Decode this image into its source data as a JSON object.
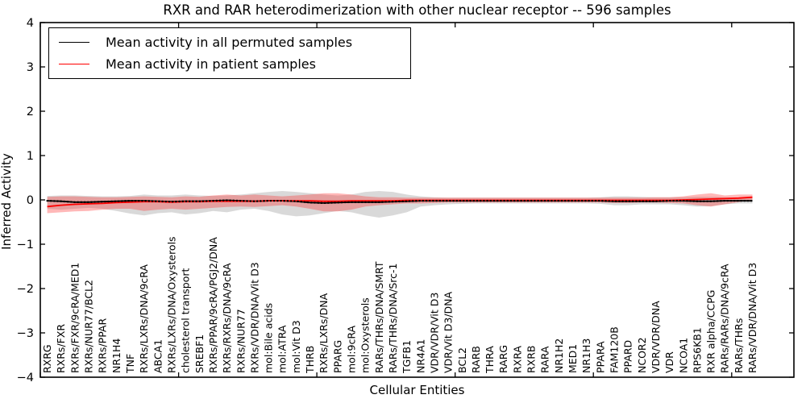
{
  "chart_data": {
    "type": "line",
    "title": "RXR and RAR heterodimerization with other nuclear receptor -- 596 samples",
    "xlabel": "Cellular Entities",
    "ylabel": "Inferred Activity",
    "ylim": [
      -4,
      4
    ],
    "yticks": [
      -4,
      -3,
      -2,
      -1,
      0,
      1,
      2,
      3,
      4
    ],
    "ytick_labels": [
      "−4",
      "−3",
      "−2",
      "−1",
      "0",
      "1",
      "2",
      "3",
      "4"
    ],
    "xlim": [
      0,
      54.5
    ],
    "xticks": [
      0,
      10,
      20,
      30,
      40,
      50
    ],
    "grid": false,
    "legend": {
      "position": "upper-left",
      "entries": [
        {
          "label": "Mean activity in all permuted samples",
          "color": "#000000"
        },
        {
          "label": "Mean activity in patient samples",
          "color": "#ff0000"
        }
      ]
    },
    "colors": {
      "permuted_line": "#000000",
      "patient_line": "#ff0000",
      "permuted_band": "rgba(130,130,130,0.30)",
      "patient_band": "rgba(255,40,40,0.33)"
    },
    "categories": [
      "RXRG",
      "RXRs/FXR",
      "RXRs/FXR/9cRA/MED1",
      "RXRs/NUR77/BCL2",
      "RXRs/PPAR",
      "NR1H4",
      "TNF",
      "RXRs/LXRs/DNA/9cRA",
      "ABCA1",
      "RXRs/LXRs/DNA/Oxysterols",
      "cholesterol transport",
      "SREBF1",
      "RXRs/PPAR/9cRA/PGJ2/DNA",
      "RXRs/RXRs/DNA/9cRA",
      "RXRs/NUR77",
      "RXRs/VDR/DNA/Vit D3",
      "mol:Bile acids",
      "mol:ATRA",
      "mol:Vit D3",
      "THRB",
      "RXRs/LXRs/DNA",
      "PPARG",
      "mol:9cRA",
      "mol:Oxysterols",
      "RARs/THRs/DNA/SMRT",
      "RARs/THRs/DNA/Src-1",
      "TGFB1",
      "NR4A1",
      "VDR/VDR/Vit D3",
      "VDR/Vit D3/DNA",
      "BCL2",
      "RARB",
      "THRA",
      "RARG",
      "RXRA",
      "RXRB",
      "RARA",
      "NR1H2",
      "MED1",
      "NR1H3",
      "PPARA",
      "FAM120B",
      "PPARD",
      "NCOR2",
      "VDR/VDR/DNA",
      "VDR",
      "NCOA1",
      "RPS6KB1",
      "RXR alpha/CCPG",
      "RARs/RARs/DNA/9cRA",
      "RARs/THRs",
      "RARs/VDR/DNA/Vit D3"
    ],
    "series": [
      {
        "name": "Mean activity in all permuted samples",
        "kind": "line",
        "values": [
          -0.02,
          -0.03,
          -0.05,
          -0.05,
          -0.04,
          -0.03,
          -0.02,
          -0.02,
          -0.03,
          -0.04,
          -0.03,
          -0.03,
          -0.02,
          -0.01,
          -0.02,
          -0.03,
          -0.02,
          -0.02,
          -0.03,
          -0.06,
          -0.07,
          -0.06,
          -0.05,
          -0.05,
          -0.05,
          -0.04,
          -0.03,
          -0.02,
          -0.02,
          -0.02,
          -0.02,
          -0.02,
          -0.02,
          -0.02,
          -0.02,
          -0.02,
          -0.02,
          -0.02,
          -0.02,
          -0.02,
          -0.02,
          -0.03,
          -0.03,
          -0.03,
          -0.03,
          -0.02,
          -0.02,
          -0.03,
          -0.03,
          -0.02,
          -0.02,
          -0.02
        ]
      },
      {
        "name": "Mean activity in patient samples",
        "kind": "line",
        "values": [
          -0.15,
          -0.12,
          -0.1,
          -0.09,
          -0.08,
          -0.06,
          -0.05,
          -0.04,
          -0.04,
          -0.05,
          -0.04,
          -0.04,
          -0.03,
          -0.03,
          -0.03,
          -0.03,
          -0.02,
          -0.02,
          -0.02,
          -0.02,
          -0.03,
          -0.03,
          -0.02,
          -0.02,
          -0.02,
          -0.02,
          -0.01,
          -0.01,
          -0.01,
          -0.01,
          -0.01,
          -0.01,
          -0.01,
          -0.01,
          -0.01,
          -0.01,
          -0.01,
          -0.01,
          -0.01,
          -0.01,
          -0.01,
          -0.01,
          -0.01,
          -0.01,
          -0.01,
          -0.01,
          0.0,
          0.01,
          0.02,
          0.03,
          0.04,
          0.06
        ]
      },
      {
        "name": "Permuted samples spread",
        "kind": "band",
        "upper": [
          0.09,
          0.1,
          0.1,
          0.09,
          0.08,
          0.08,
          0.09,
          0.12,
          0.1,
          0.1,
          0.12,
          0.1,
          0.09,
          0.1,
          0.12,
          0.15,
          0.18,
          0.2,
          0.18,
          0.15,
          0.12,
          0.1,
          0.12,
          0.18,
          0.2,
          0.18,
          0.12,
          0.08,
          0.06,
          0.05,
          0.05,
          0.05,
          0.05,
          0.05,
          0.05,
          0.05,
          0.05,
          0.05,
          0.05,
          0.05,
          0.06,
          0.08,
          0.08,
          0.07,
          0.06,
          0.06,
          0.06,
          0.07,
          0.07,
          0.06,
          0.05,
          0.05
        ],
        "lower": [
          -0.2,
          -0.22,
          -0.2,
          -0.18,
          -0.2,
          -0.25,
          -0.31,
          -0.35,
          -0.3,
          -0.28,
          -0.33,
          -0.3,
          -0.25,
          -0.28,
          -0.22,
          -0.2,
          -0.25,
          -0.33,
          -0.37,
          -0.35,
          -0.3,
          -0.25,
          -0.28,
          -0.35,
          -0.4,
          -0.35,
          -0.28,
          -0.15,
          -0.12,
          -0.1,
          -0.09,
          -0.08,
          -0.08,
          -0.08,
          -0.08,
          -0.08,
          -0.08,
          -0.08,
          -0.08,
          -0.08,
          -0.09,
          -0.12,
          -0.12,
          -0.1,
          -0.1,
          -0.1,
          -0.12,
          -0.15,
          -0.14,
          -0.1,
          -0.08,
          -0.08
        ]
      },
      {
        "name": "Patient samples spread",
        "kind": "band",
        "upper": [
          0.07,
          0.08,
          0.08,
          0.07,
          0.06,
          0.06,
          0.07,
          0.08,
          0.07,
          0.06,
          0.08,
          0.07,
          0.1,
          0.12,
          0.1,
          0.12,
          0.1,
          0.08,
          0.1,
          0.12,
          0.15,
          0.15,
          0.12,
          0.08,
          0.06,
          0.06,
          0.05,
          0.05,
          0.05,
          0.05,
          0.05,
          0.05,
          0.05,
          0.05,
          0.05,
          0.05,
          0.05,
          0.05,
          0.05,
          0.05,
          0.05,
          0.05,
          0.05,
          0.05,
          0.06,
          0.06,
          0.08,
          0.12,
          0.15,
          0.1,
          0.12,
          0.12
        ],
        "lower": [
          -0.3,
          -0.28,
          -0.26,
          -0.25,
          -0.22,
          -0.2,
          -0.2,
          -0.25,
          -0.22,
          -0.2,
          -0.22,
          -0.2,
          -0.18,
          -0.16,
          -0.15,
          -0.16,
          -0.14,
          -0.12,
          -0.15,
          -0.2,
          -0.26,
          -0.26,
          -0.22,
          -0.15,
          -0.12,
          -0.1,
          -0.08,
          -0.08,
          -0.07,
          -0.06,
          -0.06,
          -0.06,
          -0.06,
          -0.06,
          -0.06,
          -0.06,
          -0.06,
          -0.06,
          -0.06,
          -0.06,
          -0.06,
          -0.07,
          -0.07,
          -0.06,
          -0.06,
          -0.07,
          -0.08,
          -0.12,
          -0.15,
          -0.1,
          -0.05,
          0.0
        ]
      }
    ]
  }
}
